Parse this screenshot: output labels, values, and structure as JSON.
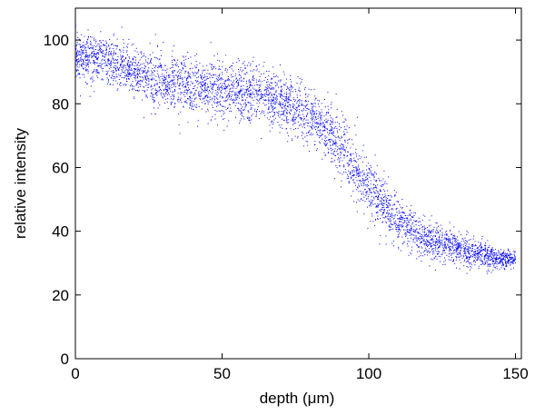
{
  "chart_data": {
    "type": "scatter",
    "title": "",
    "xlabel": "depth (μm)",
    "ylabel": "relative intensity",
    "xlim": [
      0,
      152
    ],
    "ylim": [
      0,
      110
    ],
    "xticks": [
      0,
      50,
      100,
      150
    ],
    "yticks": [
      0,
      20,
      40,
      60,
      80,
      100
    ],
    "grid": false,
    "legend": "none",
    "series": [
      {
        "color": "#0000ff",
        "marker": "dot",
        "x_range": [
          0,
          150
        ],
        "approx_point_count": 4500,
        "trend": {
          "x": [
            0,
            10,
            20,
            30,
            40,
            50,
            60,
            70,
            80,
            90,
            100,
            110,
            120,
            130,
            140,
            150
          ],
          "y": [
            95,
            94,
            90,
            87,
            85,
            84,
            83,
            81,
            76,
            67,
            54,
            43,
            37,
            35,
            32,
            31
          ]
        },
        "spread_sd": {
          "x": [
            0,
            30,
            60,
            80,
            100,
            120,
            140,
            150
          ],
          "y": [
            3.5,
            4.5,
            4.5,
            4,
            4.5,
            3,
            2,
            1.2
          ]
        }
      }
    ]
  }
}
